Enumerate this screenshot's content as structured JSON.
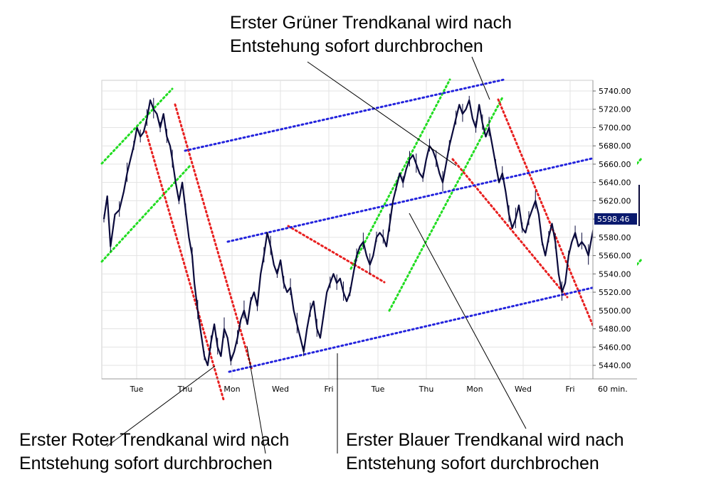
{
  "chart_data": {
    "type": "line",
    "subtype": "candlestick",
    "y_ticks": [
      5440,
      5460,
      5480,
      5500,
      5520,
      5540,
      5560,
      5580,
      5600,
      5620,
      5640,
      5660,
      5680,
      5700,
      5720,
      5740
    ],
    "y_tick_labels": [
      "5440.00",
      "5460.00",
      "5480.00",
      "5500.00",
      "5520.00",
      "5540.00",
      "5560.00",
      "5580.00",
      "5600.00",
      "5620.00",
      "5640.00",
      "5660.00",
      "5680.00",
      "5700.00",
      "5720.00",
      "5740.00"
    ],
    "ylim": [
      5425,
      5748
    ],
    "x_tick_labels": [
      "Tue",
      "Thu",
      "Mon",
      "Wed",
      "Fri",
      "Tue",
      "Thu",
      "Mon",
      "Wed",
      "Fri"
    ],
    "interval_label": "60 min.",
    "last_price_label": "5598.46",
    "last_price": 5598.46,
    "grid": true,
    "colors": {
      "price": "#0a0a3c",
      "red_channel": "#e82020",
      "green_channel": "#22dd22",
      "blue_channel": "#2323dd",
      "last_price_bg": "#0a1a6e"
    },
    "price_path": [
      [
        0,
        5600
      ],
      [
        3,
        5625
      ],
      [
        6,
        5570
      ],
      [
        10,
        5605
      ],
      [
        14,
        5610
      ],
      [
        18,
        5630
      ],
      [
        21,
        5650
      ],
      [
        24,
        5665
      ],
      [
        27,
        5680
      ],
      [
        30,
        5700
      ],
      [
        33,
        5690
      ],
      [
        36,
        5695
      ],
      [
        39,
        5710
      ],
      [
        42,
        5730
      ],
      [
        45,
        5720
      ],
      [
        48,
        5715
      ],
      [
        51,
        5700
      ],
      [
        54,
        5715
      ],
      [
        57,
        5690
      ],
      [
        60,
        5680
      ],
      [
        62,
        5665
      ],
      [
        65,
        5640
      ],
      [
        68,
        5620
      ],
      [
        71,
        5640
      ],
      [
        74,
        5610
      ],
      [
        77,
        5580
      ],
      [
        80,
        5560
      ],
      [
        82,
        5530
      ],
      [
        85,
        5500
      ],
      [
        88,
        5475
      ],
      [
        91,
        5450
      ],
      [
        94,
        5440
      ],
      [
        97,
        5465
      ],
      [
        100,
        5485
      ],
      [
        103,
        5460
      ],
      [
        106,
        5450
      ],
      [
        109,
        5480
      ],
      [
        112,
        5470
      ],
      [
        115,
        5445
      ],
      [
        118,
        5455
      ],
      [
        121,
        5470
      ],
      [
        124,
        5490
      ],
      [
        127,
        5500
      ],
      [
        130,
        5485
      ],
      [
        133,
        5510
      ],
      [
        136,
        5520
      ],
      [
        139,
        5505
      ],
      [
        142,
        5540
      ],
      [
        145,
        5560
      ],
      [
        148,
        5585
      ],
      [
        151,
        5570
      ],
      [
        154,
        5550
      ],
      [
        157,
        5540
      ],
      [
        160,
        5555
      ],
      [
        163,
        5530
      ],
      [
        166,
        5520
      ],
      [
        169,
        5525
      ],
      [
        172,
        5500
      ],
      [
        175,
        5485
      ],
      [
        178,
        5470
      ],
      [
        181,
        5455
      ],
      [
        184,
        5480
      ],
      [
        187,
        5500
      ],
      [
        190,
        5510
      ],
      [
        193,
        5480
      ],
      [
        196,
        5470
      ],
      [
        199,
        5495
      ],
      [
        202,
        5520
      ],
      [
        205,
        5530
      ],
      [
        208,
        5540
      ],
      [
        211,
        5530
      ],
      [
        214,
        5535
      ],
      [
        217,
        5520
      ],
      [
        220,
        5510
      ],
      [
        223,
        5520
      ],
      [
        226,
        5540
      ],
      [
        229,
        5560
      ],
      [
        232,
        5570
      ],
      [
        235,
        5575
      ],
      [
        238,
        5560
      ],
      [
        241,
        5550
      ],
      [
        244,
        5560
      ],
      [
        247,
        5580
      ],
      [
        250,
        5585
      ],
      [
        253,
        5580
      ],
      [
        256,
        5570
      ],
      [
        259,
        5595
      ],
      [
        262,
        5620
      ],
      [
        265,
        5635
      ],
      [
        268,
        5650
      ],
      [
        271,
        5640
      ],
      [
        274,
        5655
      ],
      [
        277,
        5665
      ],
      [
        280,
        5670
      ],
      [
        283,
        5660
      ],
      [
        286,
        5650
      ],
      [
        289,
        5645
      ],
      [
        292,
        5665
      ],
      [
        295,
        5680
      ],
      [
        298,
        5675
      ],
      [
        301,
        5665
      ],
      [
        304,
        5650
      ],
      [
        307,
        5640
      ],
      [
        310,
        5660
      ],
      [
        313,
        5680
      ],
      [
        316,
        5695
      ],
      [
        319,
        5710
      ],
      [
        322,
        5725
      ],
      [
        325,
        5715
      ],
      [
        328,
        5720
      ],
      [
        331,
        5730
      ],
      [
        334,
        5710
      ],
      [
        337,
        5700
      ],
      [
        340,
        5725
      ],
      [
        343,
        5705
      ],
      [
        346,
        5690
      ],
      [
        349,
        5700
      ],
      [
        352,
        5680
      ],
      [
        355,
        5660
      ],
      [
        358,
        5640
      ],
      [
        361,
        5650
      ],
      [
        364,
        5630
      ],
      [
        367,
        5605
      ],
      [
        370,
        5590
      ],
      [
        373,
        5600
      ],
      [
        376,
        5615
      ],
      [
        379,
        5590
      ],
      [
        382,
        5585
      ],
      [
        385,
        5600
      ],
      [
        388,
        5610
      ],
      [
        391,
        5620
      ],
      [
        394,
        5605
      ],
      [
        397,
        5575
      ],
      [
        400,
        5560
      ],
      [
        403,
        5580
      ],
      [
        406,
        5595
      ],
      [
        409,
        5575
      ],
      [
        412,
        5540
      ],
      [
        415,
        5520
      ],
      [
        418,
        5530
      ],
      [
        421,
        5560
      ],
      [
        424,
        5575
      ],
      [
        427,
        5585
      ],
      [
        430,
        5570
      ],
      [
        433,
        5575
      ],
      [
        436,
        5570
      ],
      [
        439,
        5560
      ],
      [
        442,
        5580
      ],
      [
        445,
        5598
      ]
    ],
    "price_path_x_max": 445
  },
  "annotations": {
    "green_top_line1": "Erster Grüner Trendkanal wird nach",
    "green_top_line2": "Entstehung sofort durchbrochen",
    "red_line1": "Erster Roter Trendkanal wird nach",
    "red_line2": "Entstehung sofort durchbrochen",
    "blue_line1": "Erster Blauer Trendkanal wird nach",
    "blue_line2": "Entstehung sofort durchbrochen"
  }
}
